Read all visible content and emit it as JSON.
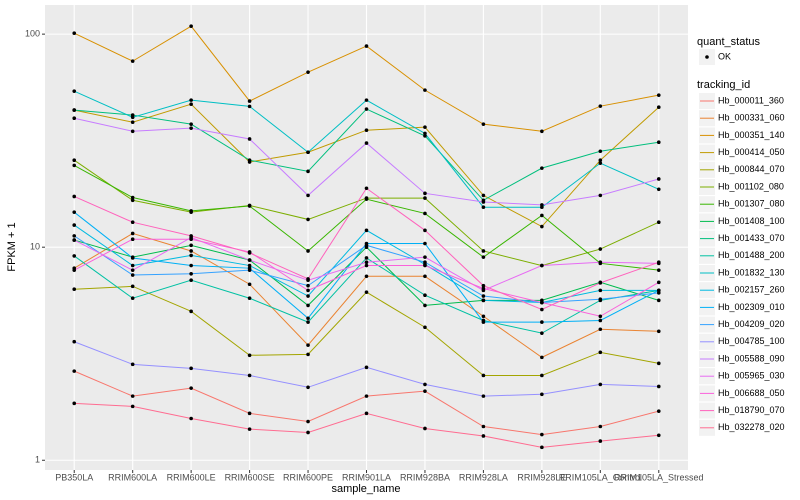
{
  "chart_data": {
    "type": "line",
    "x_label": "sample_name",
    "y_label": "FPKM + 1",
    "log_y": true,
    "grid": true,
    "categories": [
      "PB350LA",
      "RRIM600LA",
      "RRIM600LE",
      "RRIM600SE",
      "RRIM600PE",
      "RRIM901LA",
      "RRIM928BA",
      "RRIM928LA",
      "RRIM928LE",
      "RRIM105LA_Control",
      "RRIM105LA_Stressed"
    ],
    "ylim": [
      0.9,
      137
    ],
    "yticks": [
      1,
      10,
      100
    ],
    "point_legend_title": "quant_status",
    "point_legend_entry": "OK",
    "point_color": "#000000",
    "legend_title": "tracking_id",
    "series": [
      {
        "name": "Hb_000011_360",
        "color": "#F8766D",
        "values": [
          2.62,
          2.0,
          2.18,
          1.66,
          1.52,
          2.0,
          2.11,
          1.44,
          1.32,
          1.44,
          1.7
        ]
      },
      {
        "name": "Hb_000331_060",
        "color": "#EA8331",
        "values": [
          7.97,
          11.6,
          9.6,
          6.7,
          3.47,
          7.3,
          7.3,
          4.74,
          3.04,
          4.12,
          4.03
        ]
      },
      {
        "name": "Hb_000351_140",
        "color": "#D89000",
        "values": [
          101,
          74.7,
          109,
          48.5,
          66.3,
          87.9,
          54.6,
          37.8,
          35.0,
          45.9,
          51.7
        ]
      },
      {
        "name": "Hb_000414_050",
        "color": "#C09B00",
        "values": [
          44,
          38.6,
          46.9,
          25.1,
          27.9,
          35.4,
          36.6,
          17.5,
          12.5,
          25.6,
          45.4
        ]
      },
      {
        "name": "Hb_000844_070",
        "color": "#A3A500",
        "values": [
          6.35,
          6.55,
          5.0,
          3.11,
          3.14,
          6.15,
          4.21,
          2.5,
          2.5,
          3.21,
          2.85
        ]
      },
      {
        "name": "Hb_001102_080",
        "color": "#7CAE00",
        "values": [
          25.6,
          16.6,
          14.6,
          15.7,
          13.5,
          17,
          17,
          9.6,
          8.2,
          9.8,
          13.1
        ]
      },
      {
        "name": "Hb_001307_080",
        "color": "#39B600",
        "values": [
          24.2,
          17.1,
          14.8,
          15.6,
          9.6,
          16.8,
          14.4,
          8.98,
          14.1,
          8.4,
          7.8
        ]
      },
      {
        "name": "Hb_001408_100",
        "color": "#00BB4E",
        "values": [
          10.8,
          8.98,
          10.2,
          8.7,
          5.33,
          10,
          5.33,
          5.63,
          5.63,
          6.84,
          5.63
        ]
      },
      {
        "name": "Hb_001433_070",
        "color": "#00BF7D",
        "values": [
          44,
          41.7,
          37.8,
          25.6,
          22.7,
          44.5,
          33.3,
          16.6,
          23.5,
          28.2,
          31.1
        ]
      },
      {
        "name": "Hb_001488_200",
        "color": "#00C1A3",
        "values": [
          9.1,
          5.76,
          7.0,
          5.76,
          4.45,
          8.9,
          5.95,
          4.53,
          3.95,
          5.63,
          6.27
        ]
      },
      {
        "name": "Hb_001832_130",
        "color": "#00BFC4",
        "values": [
          54.0,
          40.7,
          49.0,
          45.8,
          27.9,
          49,
          34.2,
          15.4,
          15.4,
          24.8,
          18.7
        ]
      },
      {
        "name": "Hb_002157_260",
        "color": "#00BAE0",
        "values": [
          12.7,
          8.2,
          9.15,
          8.2,
          5.9,
          12.0,
          8.3,
          5.63,
          5.5,
          6.27,
          6.27
        ]
      },
      {
        "name": "Hb_002309_010",
        "color": "#00B0F6",
        "values": [
          14.6,
          8.9,
          8.2,
          7.97,
          4.64,
          10.4,
          10.4,
          4.45,
          4.45,
          4.53,
          6.27
        ]
      },
      {
        "name": "Hb_004209_020",
        "color": "#35A2FF",
        "values": [
          11.3,
          7.4,
          7.5,
          7.8,
          6.6,
          10.2,
          8.5,
          5.9,
          5.5,
          5.7,
          6.1
        ]
      },
      {
        "name": "Hb_004785_100",
        "color": "#9590FF",
        "values": [
          3.6,
          2.82,
          2.7,
          2.5,
          2.2,
          2.73,
          2.27,
          2.0,
          2.04,
          2.27,
          2.22
        ]
      },
      {
        "name": "Hb_005588_090",
        "color": "#C77CFF",
        "values": [
          40.3,
          35.0,
          36.2,
          32.2,
          17.5,
          30.8,
          17.9,
          16.3,
          15.8,
          17.5,
          20.9
        ]
      },
      {
        "name": "Hb_005965_030",
        "color": "#E76BF3",
        "values": [
          10.8,
          7.8,
          11.1,
          8.7,
          7.0,
          8.5,
          8.98,
          6.27,
          8.2,
          8.5,
          8.4
        ]
      },
      {
        "name": "Hb_006688_050",
        "color": "#FA62DB",
        "values": [
          7.8,
          10.9,
          10.9,
          9.5,
          6.27,
          8.2,
          8.2,
          6.4,
          5.5,
          4.74,
          6.84
        ]
      },
      {
        "name": "Hb_018790_070",
        "color": "#FF62BC",
        "values": [
          17.3,
          13.1,
          11.3,
          9.4,
          7.1,
          18.9,
          12.0,
          6.6,
          5.1,
          6.8,
          8.5
        ]
      },
      {
        "name": "Hb_032278_020",
        "color": "#FF6C91",
        "values": [
          1.85,
          1.79,
          1.57,
          1.4,
          1.35,
          1.66,
          1.41,
          1.3,
          1.15,
          1.23,
          1.31
        ]
      }
    ]
  }
}
